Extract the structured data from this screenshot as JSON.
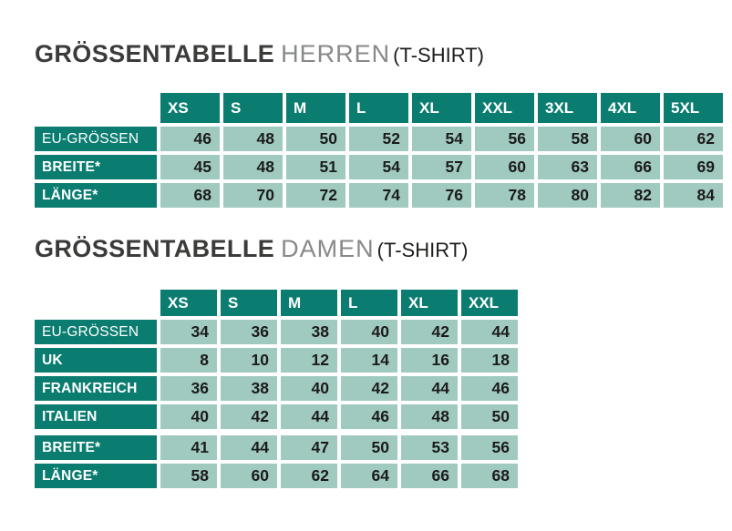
{
  "page_title": "Größentabelle T-Shirt",
  "colors": {
    "header_teal": "#0B7D70",
    "cell_green": "#A0CABF",
    "title_dark": "#3B3B3A",
    "title_gray": "#87888A",
    "paren_dark": "#1D1D1B",
    "value_text": "#1B1B1B",
    "background": "#FFFFFF"
  },
  "tables": [
    {
      "title": {
        "main": "GRÖSSENTABELLE",
        "sub": "HERREN",
        "paren": "(T-SHIRT)"
      },
      "columns": [
        "XS",
        "S",
        "M",
        "L",
        "XL",
        "XXL",
        "3XL",
        "4XL",
        "5XL"
      ],
      "rows": [
        {
          "label": "EU-GRÖSSEN",
          "bold": false,
          "group_gap": false,
          "values": [
            "46",
            "48",
            "50",
            "52",
            "54",
            "56",
            "58",
            "60",
            "62"
          ]
        },
        {
          "label": "BREITE*",
          "bold": true,
          "group_gap": false,
          "values": [
            "45",
            "48",
            "51",
            "54",
            "57",
            "60",
            "63",
            "66",
            "69"
          ]
        },
        {
          "label": "LÄNGE*",
          "bold": true,
          "group_gap": false,
          "values": [
            "68",
            "70",
            "72",
            "74",
            "76",
            "78",
            "80",
            "82",
            "84"
          ]
        }
      ]
    },
    {
      "title": {
        "main": "GRÖSSENTABELLE",
        "sub": "DAMEN",
        "paren": "(T-SHIRT)"
      },
      "columns": [
        "XS",
        "S",
        "M",
        "L",
        "XL",
        "XXL"
      ],
      "rows": [
        {
          "label": "EU-GRÖSSEN",
          "bold": false,
          "group_gap": false,
          "values": [
            "34",
            "36",
            "38",
            "40",
            "42",
            "44"
          ]
        },
        {
          "label": "UK",
          "bold": true,
          "group_gap": false,
          "values": [
            "8",
            "10",
            "12",
            "14",
            "16",
            "18"
          ]
        },
        {
          "label": "FRANKREICH",
          "bold": true,
          "group_gap": false,
          "values": [
            "36",
            "38",
            "40",
            "42",
            "44",
            "46"
          ]
        },
        {
          "label": "ITALIEN",
          "bold": true,
          "group_gap": false,
          "values": [
            "40",
            "42",
            "44",
            "46",
            "48",
            "50"
          ]
        },
        {
          "label": "BREITE*",
          "bold": true,
          "group_gap": true,
          "values": [
            "41",
            "44",
            "47",
            "50",
            "53",
            "56"
          ]
        },
        {
          "label": "LÄNGE*",
          "bold": true,
          "group_gap": false,
          "values": [
            "58",
            "60",
            "62",
            "64",
            "66",
            "68"
          ]
        }
      ]
    }
  ]
}
